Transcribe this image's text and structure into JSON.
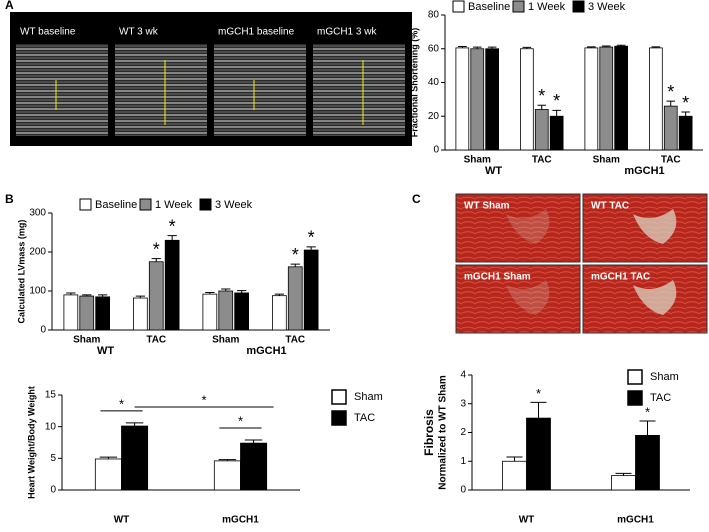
{
  "panel_labels": [
    "A",
    "B",
    "C"
  ],
  "echo_labels": [
    "WT baseline",
    "WT 3 wk",
    "mGCH1 baseline",
    "mGCH1 3 wk"
  ],
  "histology_labels": [
    "WT Sham",
    "WT TAC",
    "mGCH1 Sham",
    "mGCH1 TAC"
  ],
  "chart_data": [
    {
      "type": "bar",
      "ylabel": "Fractional Shortening (%)",
      "legend": "top",
      "categories": [
        "Sham",
        "TAC",
        "Sham",
        "TAC"
      ],
      "groups": [
        "WT",
        "mGCH1"
      ],
      "ylim": [
        0,
        80
      ],
      "yticks": [
        0,
        20,
        40,
        60,
        80
      ],
      "series": [
        {
          "name": "Baseline",
          "color": "#ffffff",
          "values": [
            60.5,
            60,
            60.5,
            60.5
          ],
          "errors": [
            0.8,
            0.8,
            0.6,
            0.6
          ],
          "significance": [
            null,
            null,
            null,
            null
          ]
        },
        {
          "name": "1 Week",
          "color": "#8c8c8c",
          "values": [
            60,
            24,
            61,
            26
          ],
          "errors": [
            1,
            2.5,
            0.6,
            3
          ],
          "significance": [
            null,
            "*",
            null,
            "*"
          ]
        },
        {
          "name": "3 Week",
          "color": "#000000",
          "values": [
            60,
            20,
            61.5,
            20
          ],
          "errors": [
            1,
            3.5,
            0.6,
            2.5
          ],
          "significance": [
            null,
            "*",
            null,
            "*"
          ]
        }
      ]
    },
    {
      "type": "bar",
      "ylabel": "Calculated LVmass (mg)",
      "legend": "top",
      "categories": [
        "Sham",
        "TAC",
        "Sham",
        "TAC"
      ],
      "groups": [
        "WT",
        "mGCH1"
      ],
      "ylim": [
        0,
        300
      ],
      "yticks": [
        0,
        100,
        200,
        300
      ],
      "series": [
        {
          "name": "Baseline",
          "color": "#ffffff",
          "values": [
            90,
            82,
            92,
            88
          ],
          "errors": [
            5,
            5,
            4,
            4
          ],
          "significance": [
            null,
            null,
            null,
            null
          ]
        },
        {
          "name": "1 Week",
          "color": "#8c8c8c",
          "values": [
            87,
            175,
            100,
            162
          ],
          "errors": [
            3,
            8,
            5,
            7
          ],
          "significance": [
            null,
            "*",
            null,
            "*"
          ]
        },
        {
          "name": "3 Week",
          "color": "#000000",
          "values": [
            85,
            230,
            95,
            205
          ],
          "errors": [
            5,
            12,
            6,
            8
          ],
          "significance": [
            null,
            "*",
            null,
            "*"
          ]
        }
      ]
    },
    {
      "type": "bar",
      "ylabel": "Heart Weight/Body Weight",
      "legend": "right",
      "categories": [
        "WT",
        "mGCH1"
      ],
      "ylim": [
        0,
        15
      ],
      "yticks": [
        0,
        5,
        10,
        15
      ],
      "brackets": [
        "*",
        "*",
        "*"
      ],
      "series": [
        {
          "name": "Sham",
          "color": "#ffffff",
          "values": [
            4.9,
            4.6
          ],
          "errors": [
            0.3,
            0.2
          ]
        },
        {
          "name": "TAC",
          "color": "#000000",
          "values": [
            10.1,
            7.4
          ],
          "errors": [
            0.5,
            0.5
          ]
        }
      ]
    },
    {
      "type": "bar",
      "ylabel": [
        "Fibrosis",
        "Normalized to WT Sham"
      ],
      "legend": "right",
      "categories": [
        "WT",
        "mGCH1"
      ],
      "ylim": [
        0,
        4
      ],
      "yticks": [
        0,
        1,
        2,
        3,
        4
      ],
      "series": [
        {
          "name": "Sham",
          "color": "#ffffff",
          "values": [
            1.0,
            0.5
          ],
          "errors": [
            0.15,
            0.08
          ],
          "significance": [
            null,
            null
          ]
        },
        {
          "name": "TAC",
          "color": "#000000",
          "values": [
            2.5,
            1.9
          ],
          "errors": [
            0.55,
            0.5
          ],
          "significance": [
            "*",
            "*"
          ]
        }
      ]
    }
  ]
}
